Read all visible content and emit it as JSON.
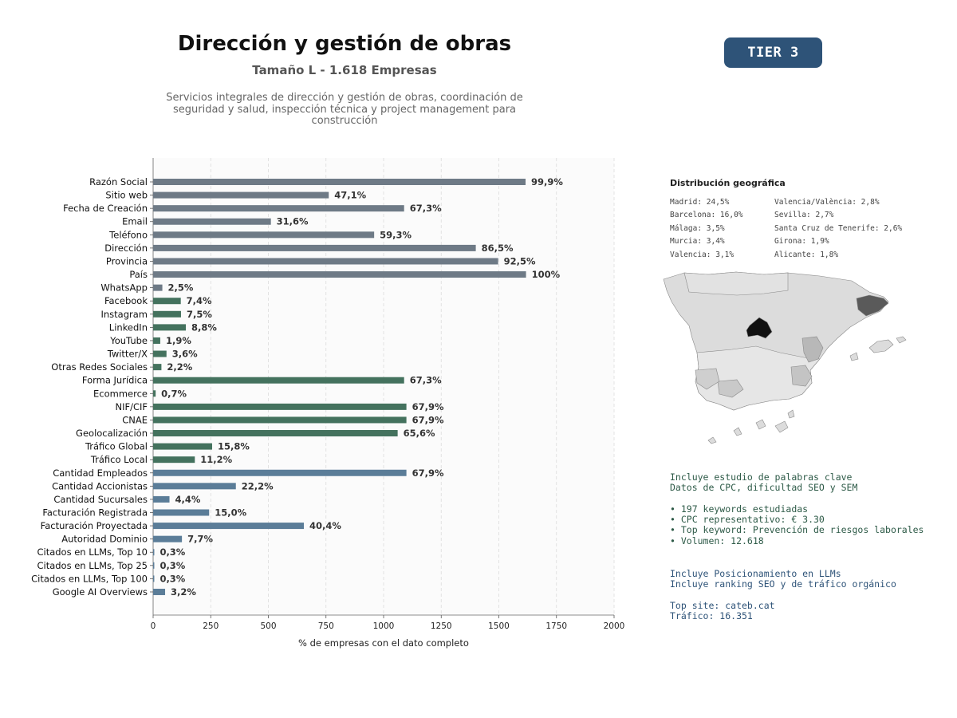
{
  "header": {
    "title": "Dirección y gestión de obras",
    "subtitle": "Tamaño L - 1.618 Empresas",
    "description": "Servicios integrales de dirección y gestión de obras, coordinación de seguridad y salud, inspección técnica y project management para construcción",
    "tier": "TIER 3"
  },
  "chart_data": {
    "type": "bar",
    "orientation": "horizontal",
    "xlabel": "% de empresas con el dato completo",
    "xlim": [
      0,
      2000
    ],
    "xticks": [
      "0",
      "250",
      "500",
      "750",
      "1000",
      "1250",
      "1500",
      "1750",
      "2000"
    ],
    "grid": "vertical dashed",
    "colors": {
      "contact": "#6e7a86",
      "social": "#44725e",
      "business": "#5b7d98"
    },
    "categories": [
      "Razón Social",
      "Sitio web",
      "Fecha de Creación",
      "Email",
      "Teléfono",
      "Dirección",
      "Provincia",
      "País",
      "WhatsApp",
      "Facebook",
      "Instagram",
      "LinkedIn",
      "YouTube",
      "Twitter/X",
      "Otras Redes Sociales",
      "Forma Jurídica",
      "Ecommerce",
      "NIF/CIF",
      "CNAE",
      "Geolocalización",
      "Tráfico Global",
      "Tráfico Local",
      "Cantidad Empleados",
      "Cantidad Accionistas",
      "Cantidad Sucursales",
      "Facturación Registrada",
      "Facturación Proyectada",
      "Autoridad Dominio",
      "Citados en LLMs, Top 10",
      "Citados en LLMs, Top 25",
      "Citados en LLMs, Top 100",
      "Google AI Overviews"
    ],
    "values": [
      1616,
      762,
      1089,
      511,
      959,
      1400,
      1497,
      1618,
      40,
      120,
      121,
      142,
      31,
      58,
      36,
      1089,
      11,
      1099,
      1099,
      1061,
      256,
      181,
      1099,
      359,
      71,
      243,
      654,
      125,
      5,
      5,
      5,
      52
    ],
    "labels": [
      "99,9%",
      "47,1%",
      "67,3%",
      "31,6%",
      "59,3%",
      "86,5%",
      "92,5%",
      "100%",
      "2,5%",
      "7,4%",
      "7,5%",
      "8,8%",
      "1,9%",
      "3,6%",
      "2,2%",
      "67,3%",
      "0,7%",
      "67,9%",
      "67,9%",
      "65,6%",
      "15,8%",
      "11,2%",
      "67,9%",
      "22,2%",
      "4,4%",
      "15,0%",
      "40,4%",
      "7,7%",
      "0,3%",
      "0,3%",
      "0,3%",
      "3,2%"
    ],
    "groups": [
      "contact",
      "contact",
      "contact",
      "contact",
      "contact",
      "contact",
      "contact",
      "contact",
      "contact",
      "social",
      "social",
      "social",
      "social",
      "social",
      "social",
      "social",
      "social",
      "social",
      "social",
      "social",
      "social",
      "social",
      "business",
      "business",
      "business",
      "business",
      "business",
      "business",
      "business",
      "business",
      "business",
      "business"
    ]
  },
  "geo": {
    "title": "Distribución geográfica",
    "left": [
      "Madrid: 24,5%",
      "Barcelona: 16,0%",
      "Málaga: 3,5%",
      "Murcia: 3,4%",
      "Valencia: 3,1%"
    ],
    "right": [
      "Valencia/València: 2,8%",
      "Sevilla: 2,7%",
      "Santa Cruz de Tenerife: 2,6%",
      "Girona: 1,9%",
      "Alicante: 1,8%"
    ]
  },
  "seo": {
    "line1": "Incluye estudio de palabras clave",
    "line2": "Datos de CPC, dificultad SEO y SEM",
    "bullet1": "• 197 keywords estudiadas",
    "bullet2": "• CPC representativo: € 3.30",
    "bullet3": "• Top keyword: Prevención de riesgos laborales",
    "bullet4": "• Volumen: 12.618"
  },
  "llm": {
    "line1": "Incluye Posicionamiento en LLMs",
    "line2": "Incluye ranking SEO y de tráfico orgánico",
    "top_site": "Top site: cateb.cat",
    "traffic": "Tráfico: 16.351"
  }
}
